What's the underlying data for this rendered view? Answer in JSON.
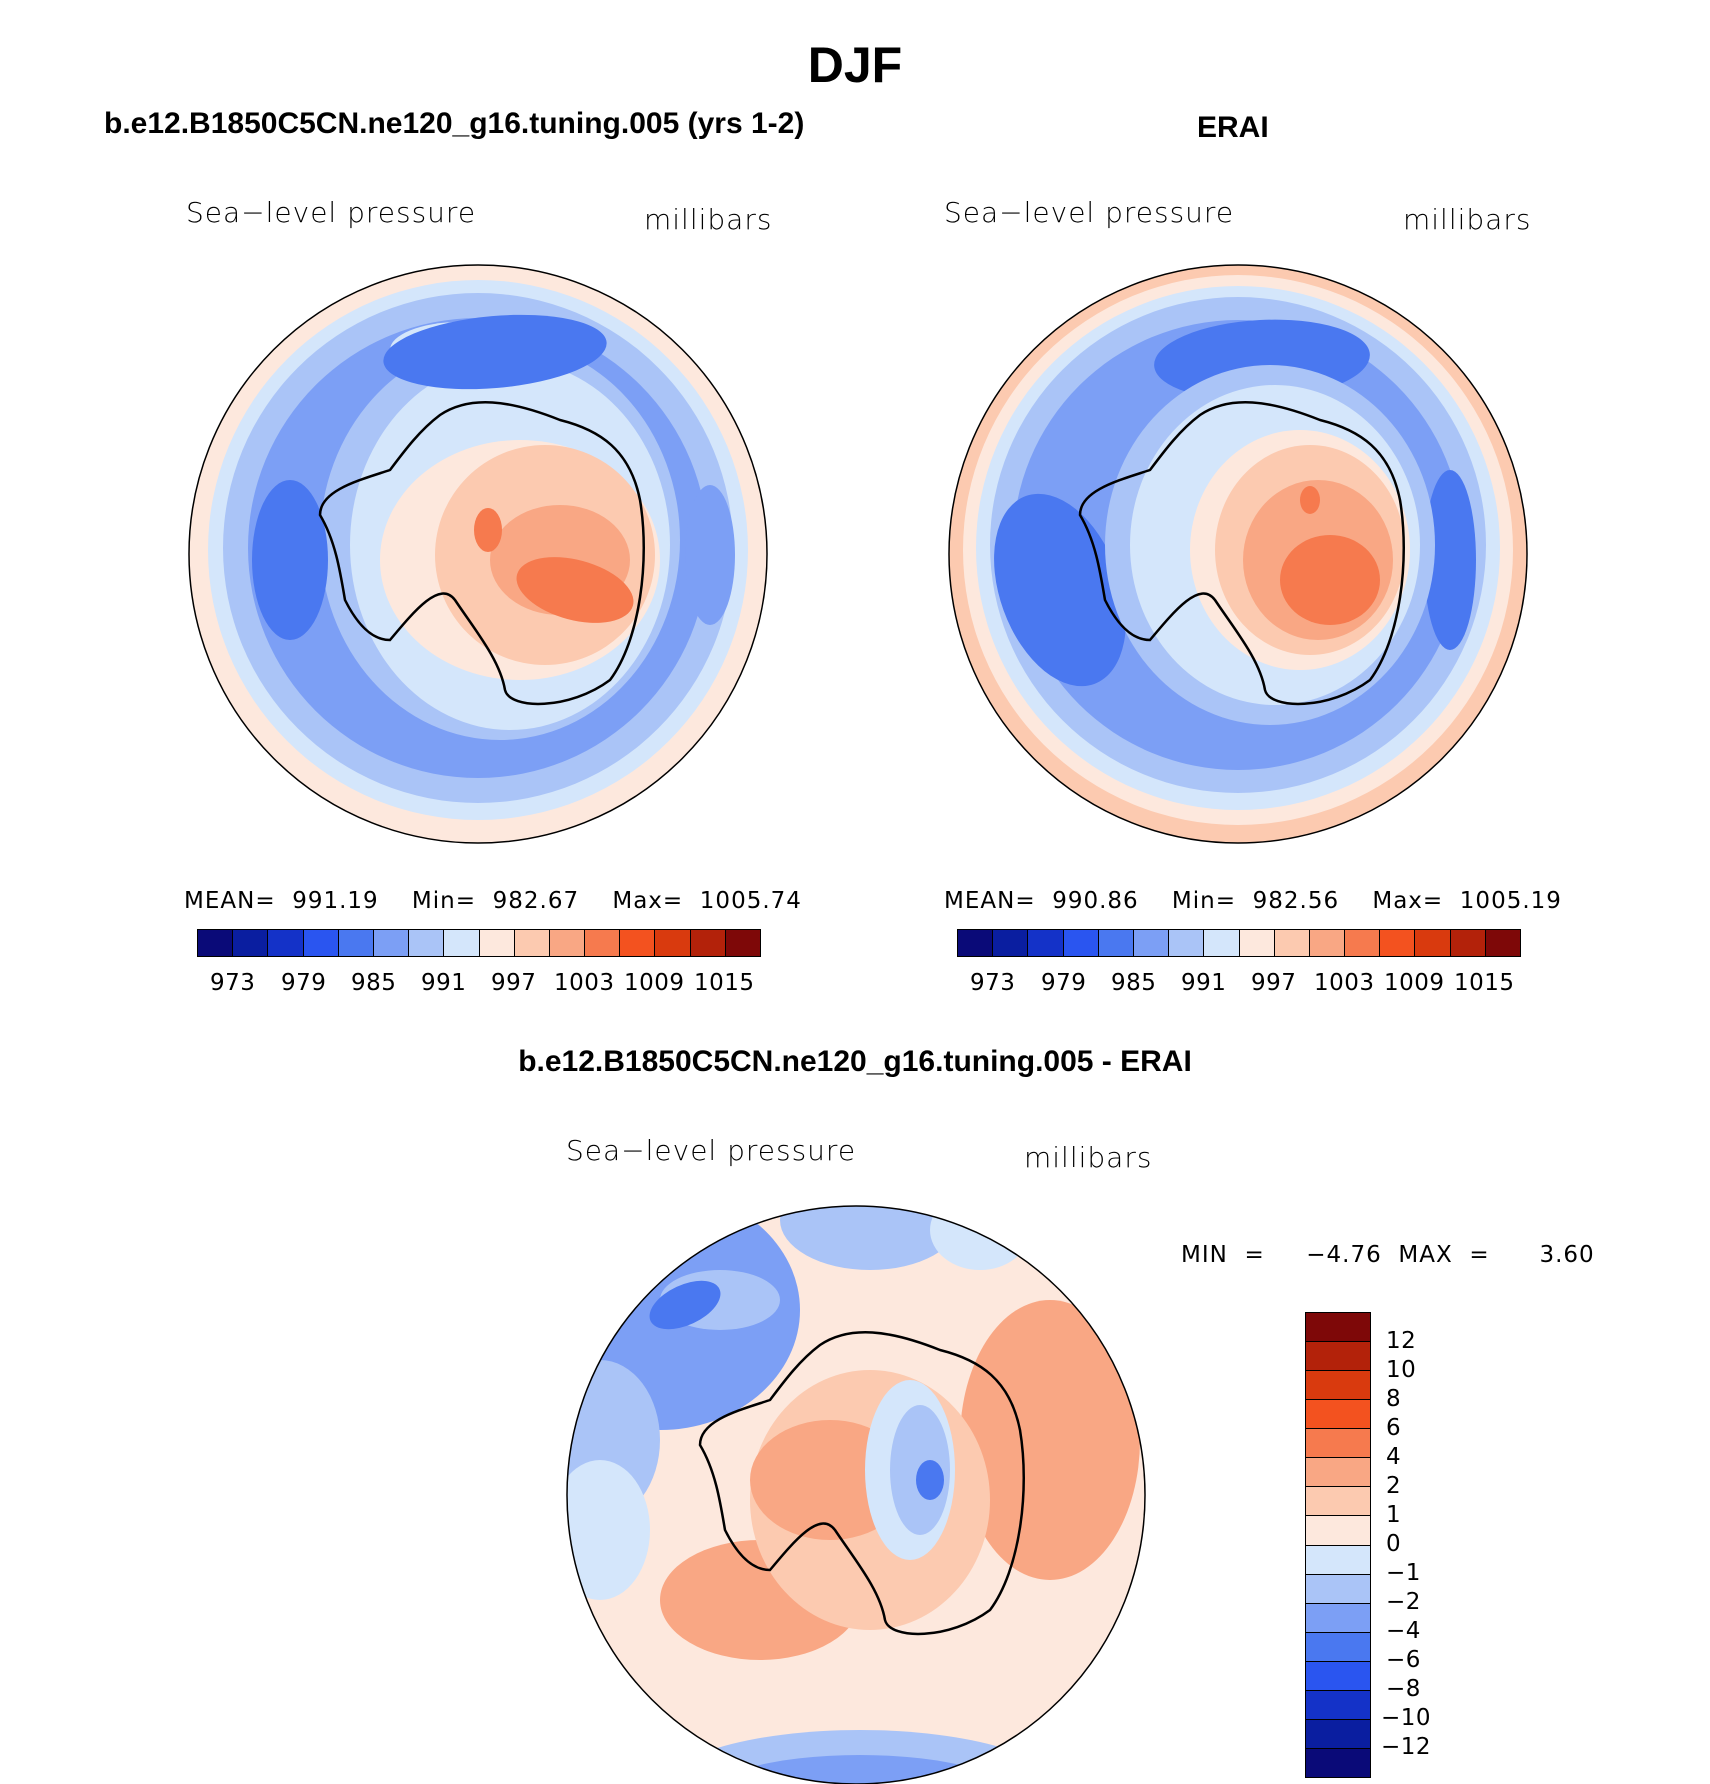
{
  "figure": {
    "title": "DJF",
    "panels": [
      {
        "id": "model",
        "heading": "b.e12.B1850C5CN.ne120_g16.tuning.005 (yrs 1-2)",
        "variable": "Sea−level pressure",
        "units": "millibars",
        "stats": "MEAN=  991.19    Min=  982.67    Max=  1005.74",
        "colorbar_ticks": [
          "973",
          "979",
          "985",
          "991",
          "997",
          "1003",
          "1009",
          "1015"
        ]
      },
      {
        "id": "obs",
        "heading": "ERAI",
        "variable": "Sea−level pressure",
        "units": "millibars",
        "stats": "MEAN=  990.86    Min=  982.56    Max=  1005.19",
        "colorbar_ticks": [
          "973",
          "979",
          "985",
          "991",
          "997",
          "1003",
          "1009",
          "1015"
        ]
      },
      {
        "id": "diff",
        "heading": "b.e12.B1850C5CN.ne120_g16.tuning.005 - ERAI",
        "variable": "Sea−level pressure",
        "units": "millibars",
        "stats": "MIN  =     −4.76  MAX  =      3.60",
        "colorbar_ticks": [
          "12",
          "10",
          "8",
          "6",
          "4",
          "2",
          "1",
          "0",
          "−1",
          "−2",
          "−4",
          "−6",
          "−8",
          "−10",
          "−12"
        ]
      }
    ]
  },
  "colors": {
    "abs_levels": [
      "#0a0a78",
      "#0a1ea0",
      "#1432c8",
      "#2a55f0",
      "#4a78f0",
      "#7c9ff5",
      "#aac4f7",
      "#d4e6fb",
      "#fde8dd",
      "#fccab0",
      "#f9a784",
      "#f67a4e",
      "#f3521f",
      "#d93a0e",
      "#b3220a",
      "#7e0808"
    ],
    "diff_levels": [
      "#7e0808",
      "#b3220a",
      "#d93a0e",
      "#f3521f",
      "#f67a4e",
      "#f9a784",
      "#fccab0",
      "#fde8dd",
      "#d4e6fb",
      "#aac4f7",
      "#7c9ff5",
      "#4a78f0",
      "#2a55f0",
      "#1432c8",
      "#0a1ea0",
      "#0a0a78"
    ]
  }
}
